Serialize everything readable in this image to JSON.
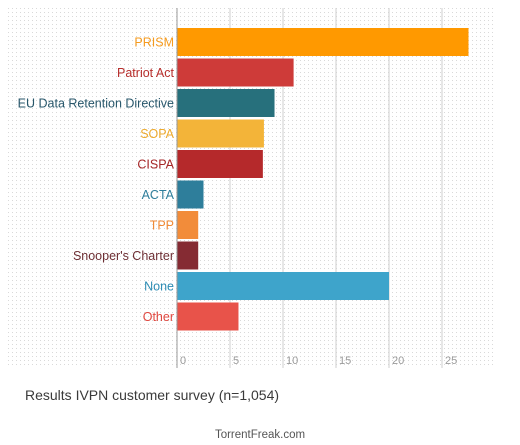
{
  "chart_data": {
    "type": "bar",
    "orientation": "horizontal",
    "categories": [
      "PRISM",
      "Patriot Act",
      "EU Data Retention Directive",
      "SOPA",
      "CISPA",
      "ACTA",
      "TPP",
      "Snooper's Charter",
      "None",
      "Other"
    ],
    "values": [
      27.5,
      11,
      9.2,
      8.2,
      8.1,
      2.5,
      2,
      2,
      20,
      5.8
    ],
    "colors": [
      "#FF9900",
      "#CE3B39",
      "#27707C",
      "#F3B439",
      "#B5292B",
      "#2E7E9B",
      "#F28C3A",
      "#852B33",
      "#3EA4CB",
      "#E8534A"
    ],
    "label_colors": [
      "#F59B1F",
      "#B72E2C",
      "#27566A",
      "#EDAA2E",
      "#A52627",
      "#2E7E9B",
      "#F08A35",
      "#6D2E33",
      "#2E8DB5",
      "#E0473F"
    ],
    "xticks": [
      0,
      5,
      10,
      15,
      20,
      25
    ],
    "xlim": [
      0,
      29
    ],
    "grid": true,
    "title": "",
    "xlabel": "",
    "ylabel": ""
  },
  "caption": "Results IVPN customer survey (n=1,054)",
  "source": "TorrentFreak.com"
}
